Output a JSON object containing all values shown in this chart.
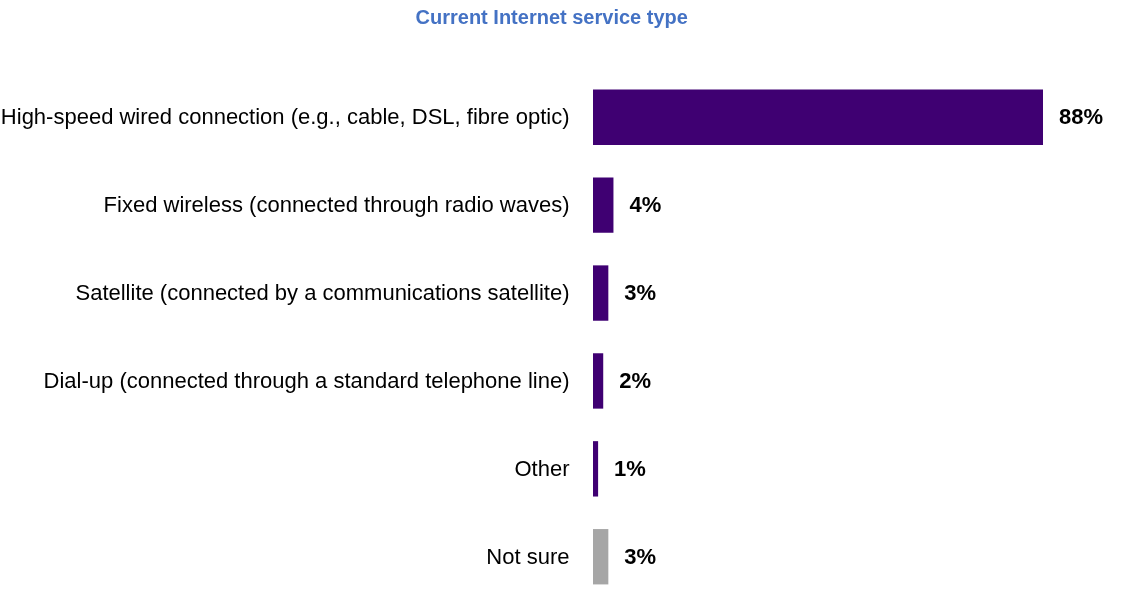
{
  "chart_data": {
    "type": "bar",
    "orientation": "horizontal",
    "title": "Current Internet service type",
    "categories": [
      "High-speed wired connection (e.g., cable, DSL, fibre optic)",
      "Fixed wireless (connected through radio waves)",
      "Satellite (connected by a communications satellite)",
      "Dial-up (connected through a standard telephone line)",
      "Other",
      "Not sure"
    ],
    "values": [
      88,
      4,
      3,
      2,
      1,
      3
    ],
    "colors": [
      "#3f0072",
      "#3f0072",
      "#3f0072",
      "#3f0072",
      "#3f0072",
      "#a6a6a6"
    ],
    "value_labels": [
      "88%",
      "4%",
      "3%",
      "2%",
      "1%",
      "3%"
    ]
  }
}
